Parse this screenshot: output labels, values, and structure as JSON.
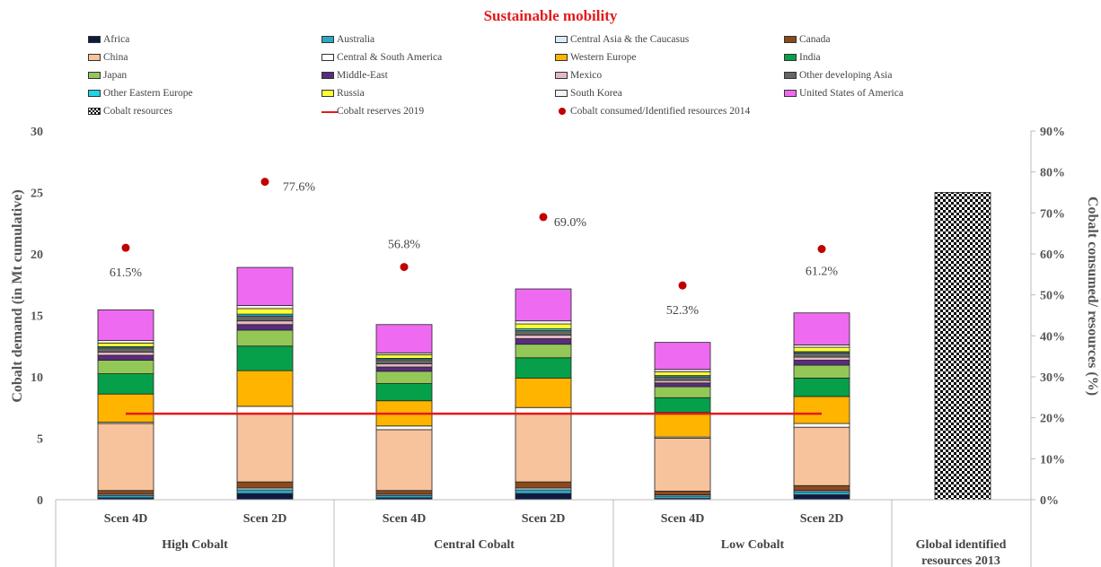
{
  "chart_data": {
    "type": "bar",
    "title": "Sustainable mobility",
    "ylabel": "Cobalt demand (in Mt cumulative)",
    "y2label": "Cobalt consumed/ resources (%)",
    "ylim": [
      0,
      30
    ],
    "y2lim": [
      0,
      90
    ],
    "yticks": [
      "0",
      "5",
      "10",
      "15",
      "20",
      "25",
      "30"
    ],
    "y2ticks": [
      "0%",
      "10%",
      "20%",
      "30%",
      "40%",
      "50%",
      "60%",
      "70%",
      "80%",
      "90%"
    ],
    "groups": [
      "High Cobalt",
      "Central Cobalt",
      "Low Cobalt",
      "Global identified resources 2013"
    ],
    "categories": [
      "Scen 4D",
      "Scen 2D",
      "Scen 4D",
      "Scen 2D",
      "Scen 4D",
      "Scen 2D",
      ""
    ],
    "series": [
      {
        "name": "Africa",
        "color": "#0d1b3e",
        "values": [
          0.15,
          0.5,
          0.15,
          0.5,
          0.1,
          0.4,
          null
        ]
      },
      {
        "name": "Australia",
        "color": "#2ea6c8",
        "values": [
          0.2,
          0.3,
          0.2,
          0.3,
          0.2,
          0.25,
          null
        ]
      },
      {
        "name": "Central Asia & the Caucasus",
        "color": "#d9ecf7",
        "values": [
          0.1,
          0.15,
          0.1,
          0.15,
          0.1,
          0.1,
          null
        ]
      },
      {
        "name": "Canada",
        "color": "#8b4a1e",
        "values": [
          0.3,
          0.5,
          0.3,
          0.5,
          0.3,
          0.4,
          null
        ]
      },
      {
        "name": "China",
        "color": "#f7c39c",
        "values": [
          5.45,
          5.6,
          4.95,
          5.6,
          4.3,
          4.75,
          null
        ]
      },
      {
        "name": "Central & South America",
        "color": "#ffffff",
        "values": [
          0.1,
          0.55,
          0.3,
          0.45,
          0.1,
          0.3,
          null
        ]
      },
      {
        "name": "Western Europe",
        "color": "#ffb400",
        "values": [
          2.3,
          2.9,
          2.05,
          2.4,
          2.0,
          2.2,
          null
        ]
      },
      {
        "name": "India",
        "color": "#07a04a",
        "values": [
          1.65,
          2.0,
          1.4,
          1.65,
          1.2,
          1.5,
          null
        ]
      },
      {
        "name": "Japan",
        "color": "#93c857",
        "values": [
          1.1,
          1.3,
          1.0,
          1.1,
          0.9,
          1.05,
          null
        ]
      },
      {
        "name": "Middle-East",
        "color": "#5b2c7e",
        "values": [
          0.4,
          0.45,
          0.35,
          0.45,
          0.3,
          0.4,
          null
        ]
      },
      {
        "name": "Mexico",
        "color": "#e3b9c3",
        "values": [
          0.25,
          0.3,
          0.25,
          0.3,
          0.2,
          0.25,
          null
        ]
      },
      {
        "name": "Other developing Asia",
        "color": "#666666",
        "values": [
          0.35,
          0.4,
          0.35,
          0.35,
          0.3,
          0.35,
          null
        ]
      },
      {
        "name": "Other Eastern Europe",
        "color": "#1fd3e8",
        "values": [
          0.1,
          0.15,
          0.1,
          0.15,
          0.1,
          0.1,
          null
        ]
      },
      {
        "name": "Russia",
        "color": "#ffff33",
        "values": [
          0.3,
          0.45,
          0.3,
          0.4,
          0.3,
          0.35,
          null
        ]
      },
      {
        "name": "South Korea",
        "color": "#f2f2f2",
        "values": [
          0.2,
          0.25,
          0.15,
          0.25,
          0.2,
          0.2,
          null
        ]
      },
      {
        "name": "United States of America",
        "color": "#ee6af0",
        "values": [
          2.5,
          3.1,
          2.3,
          2.6,
          2.2,
          2.6,
          null
        ]
      },
      {
        "name": "Cobalt resources",
        "color": "#000000",
        "pattern": "checker",
        "values": [
          null,
          null,
          null,
          null,
          null,
          null,
          25.0
        ]
      }
    ],
    "reserves_line": {
      "name": "Cobalt reserves 2019",
      "color": "#e31a1c",
      "value": 7.0
    },
    "consumed_points": {
      "name": "Cobalt consumed/Identified resources 2014",
      "color": "#c00000",
      "values": [
        61.5,
        77.6,
        56.8,
        69.0,
        52.3,
        61.2
      ],
      "labels": [
        "61.5%",
        "77.6%",
        "56.8%",
        "69.0%",
        "52.3%",
        "61.2%"
      ]
    },
    "legend_position": "top"
  }
}
